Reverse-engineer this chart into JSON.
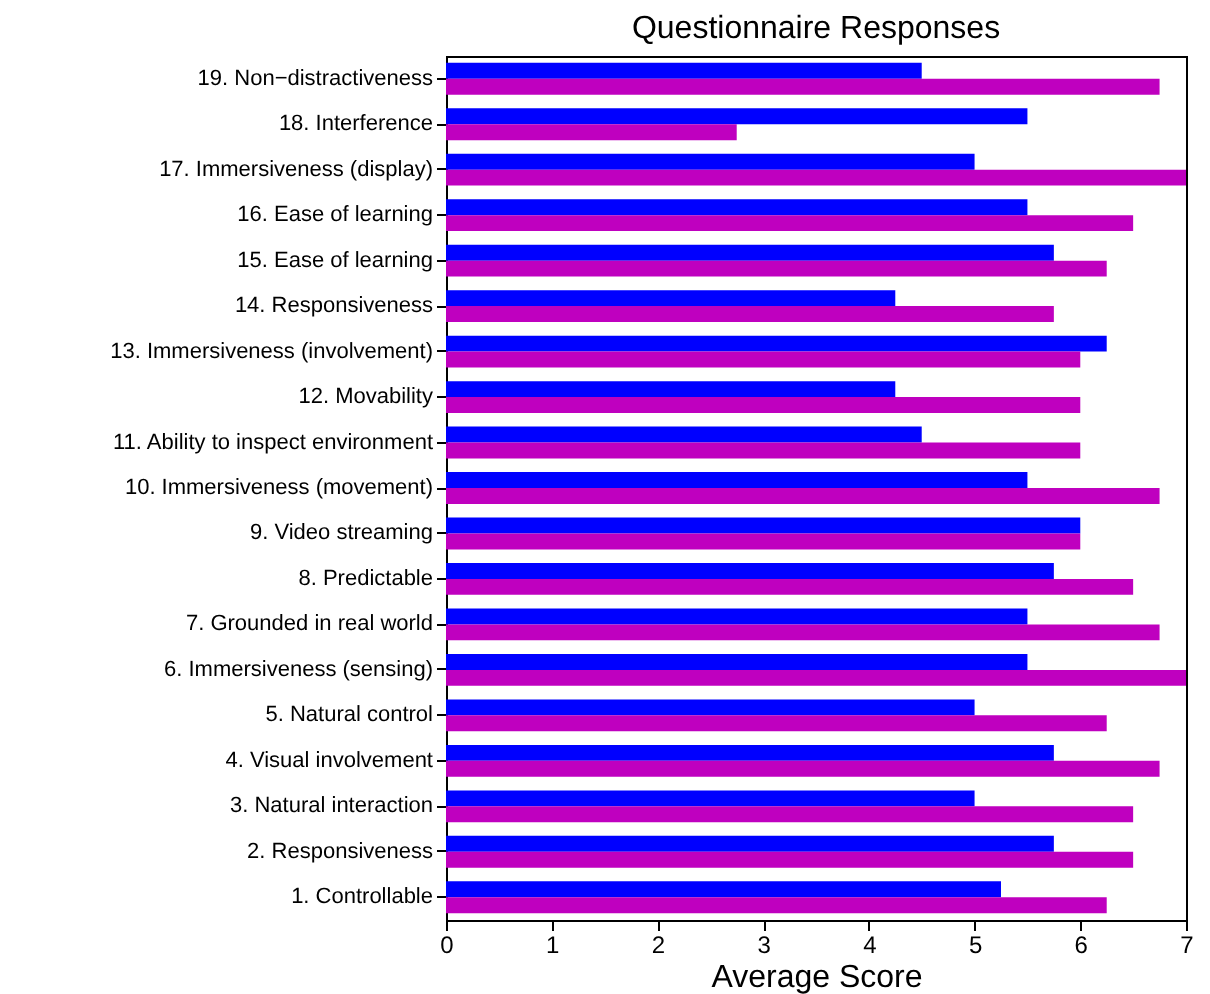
{
  "chart_data": {
    "type": "bar",
    "orientation": "horizontal",
    "title": "Questionnaire Responses",
    "xlabel": "Average Score",
    "categories": [
      "19. Non−distractiveness",
      "18. Interference",
      "17. Immersiveness (display)",
      "16. Ease of learning",
      "15. Ease of learning",
      "14. Responsiveness",
      "13. Immersiveness (involvement)",
      "12. Movability",
      "11. Ability to inspect environment",
      "10. Immersiveness (movement)",
      "9. Video streaming",
      "8. Predictable",
      "7. Grounded in real world",
      "6. Immersiveness (sensing)",
      "5. Natural control",
      "4. Visual involvement",
      "3. Natural interaction",
      "2. Responsiveness",
      "1. Controllable"
    ],
    "series": [
      {
        "color": "#0000ff",
        "values": [
          4.5,
          5.5,
          5.0,
          5.5,
          5.75,
          4.25,
          6.25,
          4.25,
          4.5,
          5.5,
          6.0,
          5.75,
          5.5,
          5.5,
          5.0,
          5.75,
          5.0,
          5.75,
          5.25
        ]
      },
      {
        "color": "#bf00bf",
        "values": [
          6.75,
          2.75,
          7.0,
          6.5,
          6.25,
          5.75,
          6.0,
          6.0,
          6.0,
          6.75,
          6.0,
          6.5,
          6.75,
          7.0,
          6.25,
          6.75,
          6.5,
          6.5,
          6.25
        ]
      }
    ],
    "xlim": [
      0,
      7
    ],
    "xticks": [
      0,
      1,
      2,
      3,
      4,
      5,
      6,
      7
    ],
    "grid": false,
    "legend": false
  }
}
